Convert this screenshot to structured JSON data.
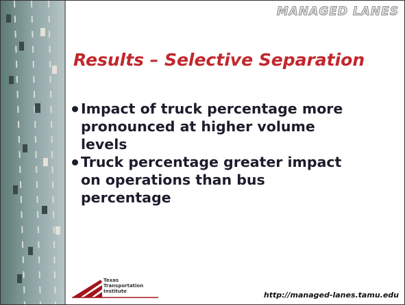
{
  "header": {
    "brand": "MANAGED LANES"
  },
  "title": "Results – Selective Separation",
  "bullets": [
    [
      "Impact of truck percentage more",
      "pronounced at higher volume",
      "levels"
    ],
    [
      "Truck percentage greater impact",
      "on operations than bus",
      "percentage"
    ]
  ],
  "footer": {
    "logo": [
      "Texas",
      "Transportation",
      "Institute"
    ],
    "url": "http://managed-lanes.tamu.edu"
  }
}
